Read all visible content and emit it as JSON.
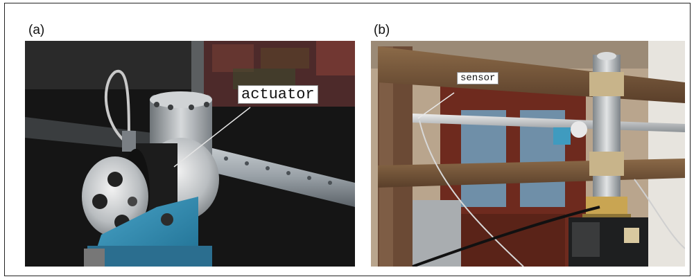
{
  "figure": {
    "panels": [
      {
        "label": "(a)",
        "callout": "actuator"
      },
      {
        "label": "(b)",
        "callout": "sensor"
      }
    ]
  }
}
